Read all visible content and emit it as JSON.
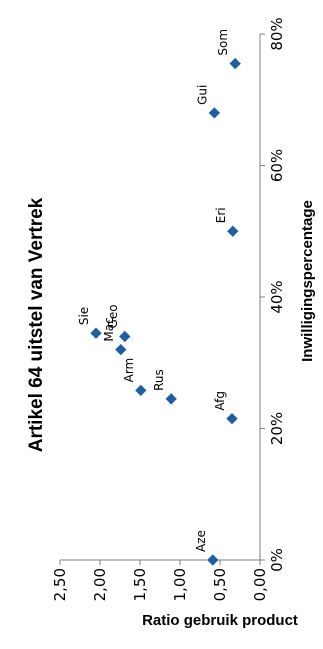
{
  "chart_data": {
    "type": "scatter",
    "title": "Artikel 64 uitstel van Vertrek",
    "xlabel": "Inwilligingspercentage",
    "ylabel": "Ratio gebruik product",
    "xlim": [
      0,
      80
    ],
    "ylim": [
      0,
      2.5
    ],
    "x_ticks": [
      "0%",
      "20%",
      "40%",
      "60%",
      "80%"
    ],
    "y_ticks": [
      "0,00",
      "0,50",
      "1,00",
      "1,50",
      "2,00",
      "2,50"
    ],
    "grid": false,
    "marker_color": "#1f5fa0",
    "points": [
      {
        "label": "Aze",
        "x": 0,
        "y": 0.59
      },
      {
        "label": "Afg",
        "x": 21.5,
        "y": 0.35
      },
      {
        "label": "Rus",
        "x": 24.5,
        "y": 1.11
      },
      {
        "label": "Arm",
        "x": 25.8,
        "y": 1.49
      },
      {
        "label": "Mac",
        "x": 32,
        "y": 1.74
      },
      {
        "label": "Geo",
        "x": 34,
        "y": 1.69
      },
      {
        "label": "Sie",
        "x": 34.5,
        "y": 2.05
      },
      {
        "label": "Eri",
        "x": 50,
        "y": 0.34
      },
      {
        "label": "Gui",
        "x": 68,
        "y": 0.57
      },
      {
        "label": "Som",
        "x": 75.5,
        "y": 0.31
      }
    ]
  }
}
